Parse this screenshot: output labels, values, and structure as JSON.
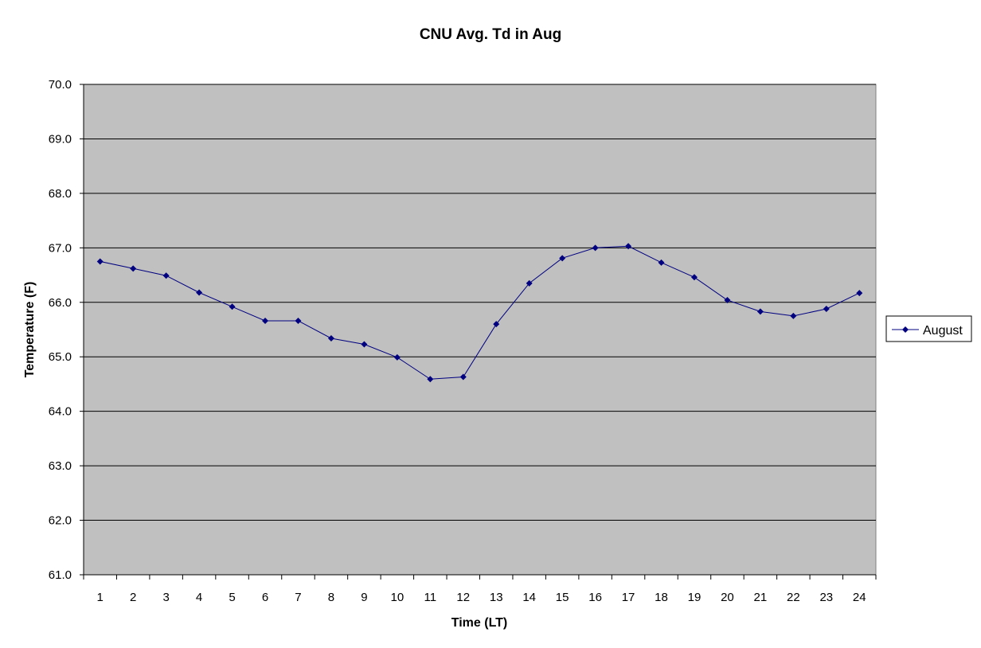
{
  "chart_data": {
    "type": "line",
    "title": "CNU Avg. Td in Aug",
    "xlabel": "Time (LT)",
    "ylabel": "Temperature (F)",
    "categories": [
      "1",
      "2",
      "3",
      "4",
      "5",
      "6",
      "7",
      "8",
      "9",
      "10",
      "11",
      "12",
      "13",
      "14",
      "15",
      "16",
      "17",
      "18",
      "19",
      "20",
      "21",
      "22",
      "23",
      "24"
    ],
    "ylim": [
      61.0,
      70.0
    ],
    "yticks": [
      "61.0",
      "62.0",
      "63.0",
      "64.0",
      "65.0",
      "66.0",
      "67.0",
      "68.0",
      "69.0",
      "70.0"
    ],
    "grid": "horizontal major",
    "legend_position": "right",
    "plot_background": "#c0c0c0",
    "series": [
      {
        "name": "August",
        "color": "#000080",
        "marker": "diamond",
        "values": [
          66.75,
          66.62,
          66.49,
          66.18,
          65.92,
          65.66,
          65.66,
          65.34,
          65.23,
          64.99,
          64.59,
          64.63,
          65.6,
          66.35,
          66.81,
          67.0,
          67.03,
          66.73,
          66.46,
          66.04,
          65.83,
          65.75,
          65.88,
          66.17
        ]
      }
    ]
  }
}
